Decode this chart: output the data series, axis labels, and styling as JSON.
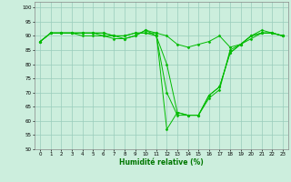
{
  "title": "",
  "xlabel": "Humidité relative (%)",
  "ylabel": "",
  "background_color": "#cceedd",
  "grid_color": "#99ccbb",
  "line_color": "#00bb00",
  "marker_color": "#00bb00",
  "xlim": [
    -0.5,
    23.5
  ],
  "ylim": [
    50,
    102
  ],
  "yticks": [
    50,
    55,
    60,
    65,
    70,
    75,
    80,
    85,
    90,
    95,
    100
  ],
  "xticks": [
    0,
    1,
    2,
    3,
    4,
    5,
    6,
    7,
    8,
    9,
    10,
    11,
    12,
    13,
    14,
    15,
    16,
    17,
    18,
    19,
    20,
    21,
    22,
    23
  ],
  "series": [
    [
      88,
      91,
      91,
      91,
      91,
      91,
      91,
      90,
      90,
      91,
      91,
      90,
      70,
      62,
      62,
      62,
      68,
      71,
      85,
      87,
      89,
      91,
      91,
      90
    ],
    [
      88,
      91,
      91,
      91,
      91,
      91,
      90,
      90,
      89,
      90,
      92,
      90,
      80,
      63,
      62,
      62,
      69,
      72,
      84,
      87,
      90,
      91,
      91,
      90
    ],
    [
      88,
      91,
      91,
      91,
      90,
      90,
      90,
      89,
      89,
      90,
      92,
      91,
      57,
      63,
      62,
      62,
      69,
      72,
      84,
      87,
      90,
      91,
      91,
      90
    ],
    [
      88,
      91,
      91,
      91,
      91,
      91,
      91,
      90,
      90,
      91,
      91,
      91,
      90,
      87,
      86,
      87,
      88,
      90,
      86,
      87,
      90,
      92,
      91,
      90
    ]
  ]
}
